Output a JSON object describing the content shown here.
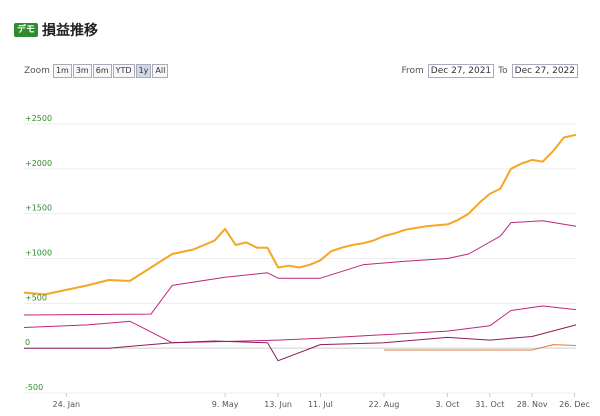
{
  "header": {
    "badge": "デモ",
    "title": "損益推移"
  },
  "toolbar": {
    "zoom_label": "Zoom",
    "zoom_buttons": [
      "1m",
      "3m",
      "6m",
      "YTD",
      "1y",
      "All"
    ],
    "active_zoom": "1y",
    "from_label": "From",
    "from_value": "Dec 27, 2021",
    "to_label": "To",
    "to_value": "Dec 27, 2022"
  },
  "colors": {
    "main": "#f5a623",
    "secondary": "#c0267a",
    "tertiary": "#8e1a5b",
    "minor": "#e07b39",
    "axis": "#2e8b2e"
  },
  "chart_data": {
    "type": "line",
    "ylim": [
      -500,
      2500
    ],
    "y_ticks": [
      "+2500",
      "+2000",
      "+1500",
      "+1000",
      "+500",
      "0",
      "-500"
    ],
    "y_tick_values": [
      2500,
      2000,
      1500,
      1000,
      500,
      0,
      -500
    ],
    "x_ticks": [
      "24. Jan",
      "9. May",
      "13. Jun",
      "11. Jul",
      "22. Aug",
      "3. Oct",
      "31. Oct",
      "28. Nov",
      "26. Dec"
    ],
    "x_tick_values": [
      "2022-01-24",
      "2022-05-09",
      "2022-06-13",
      "2022-07-11",
      "2022-08-22",
      "2022-10-03",
      "2022-10-31",
      "2022-11-28",
      "2022-12-26"
    ],
    "x_range": [
      "2021-12-27",
      "2022-12-27"
    ],
    "series": [
      {
        "color": "#f5a623",
        "points": [
          [
            "2021-12-27",
            620
          ],
          [
            "2022-01-10",
            600
          ],
          [
            "2022-01-24",
            650
          ],
          [
            "2022-02-07",
            700
          ],
          [
            "2022-02-21",
            760
          ],
          [
            "2022-03-07",
            750
          ],
          [
            "2022-03-21",
            900
          ],
          [
            "2022-04-04",
            1050
          ],
          [
            "2022-04-18",
            1100
          ],
          [
            "2022-05-02",
            1200
          ],
          [
            "2022-05-09",
            1330
          ],
          [
            "2022-05-16",
            1150
          ],
          [
            "2022-05-23",
            1180
          ],
          [
            "2022-05-30",
            1120
          ],
          [
            "2022-06-06",
            1120
          ],
          [
            "2022-06-13",
            900
          ],
          [
            "2022-06-20",
            920
          ],
          [
            "2022-06-27",
            900
          ],
          [
            "2022-07-04",
            930
          ],
          [
            "2022-07-11",
            980
          ],
          [
            "2022-07-18",
            1080
          ],
          [
            "2022-07-25",
            1120
          ],
          [
            "2022-08-01",
            1150
          ],
          [
            "2022-08-08",
            1170
          ],
          [
            "2022-08-15",
            1200
          ],
          [
            "2022-08-22",
            1250
          ],
          [
            "2022-08-29",
            1280
          ],
          [
            "2022-09-05",
            1320
          ],
          [
            "2022-09-12",
            1340
          ],
          [
            "2022-09-19",
            1360
          ],
          [
            "2022-09-26",
            1370
          ],
          [
            "2022-10-03",
            1380
          ],
          [
            "2022-10-10",
            1430
          ],
          [
            "2022-10-17",
            1500
          ],
          [
            "2022-10-24",
            1620
          ],
          [
            "2022-10-31",
            1720
          ],
          [
            "2022-11-07",
            1780
          ],
          [
            "2022-11-14",
            2000
          ],
          [
            "2022-11-21",
            2060
          ],
          [
            "2022-11-28",
            2100
          ],
          [
            "2022-12-05",
            2080
          ],
          [
            "2022-12-12",
            2200
          ],
          [
            "2022-12-19",
            2350
          ],
          [
            "2022-12-27",
            2380
          ]
        ]
      },
      {
        "color": "#c0267a",
        "points": [
          [
            "2021-12-27",
            370
          ],
          [
            "2022-03-21",
            380
          ],
          [
            "2022-04-04",
            700
          ],
          [
            "2022-05-09",
            790
          ],
          [
            "2022-06-06",
            840
          ],
          [
            "2022-06-13",
            780
          ],
          [
            "2022-07-11",
            780
          ],
          [
            "2022-08-08",
            930
          ],
          [
            "2022-09-05",
            970
          ],
          [
            "2022-10-03",
            1000
          ],
          [
            "2022-10-17",
            1050
          ],
          [
            "2022-11-07",
            1250
          ],
          [
            "2022-11-14",
            1400
          ],
          [
            "2022-12-05",
            1420
          ],
          [
            "2022-12-27",
            1360
          ]
        ]
      },
      {
        "color": "#c0267a",
        "points": [
          [
            "2021-12-27",
            230
          ],
          [
            "2022-02-07",
            260
          ],
          [
            "2022-03-07",
            300
          ],
          [
            "2022-03-14",
            240
          ],
          [
            "2022-04-04",
            60
          ],
          [
            "2022-06-13",
            90
          ],
          [
            "2022-07-11",
            110
          ],
          [
            "2022-08-22",
            150
          ],
          [
            "2022-10-03",
            190
          ],
          [
            "2022-10-31",
            250
          ],
          [
            "2022-11-14",
            420
          ],
          [
            "2022-12-05",
            470
          ],
          [
            "2022-12-27",
            430
          ]
        ]
      },
      {
        "color": "#8e1a5b",
        "points": [
          [
            "2021-12-27",
            0
          ],
          [
            "2022-02-21",
            0
          ],
          [
            "2022-04-04",
            60
          ],
          [
            "2022-05-02",
            80
          ],
          [
            "2022-06-06",
            60
          ],
          [
            "2022-06-13",
            -140
          ],
          [
            "2022-07-11",
            40
          ],
          [
            "2022-08-22",
            60
          ],
          [
            "2022-10-03",
            120
          ],
          [
            "2022-10-31",
            90
          ],
          [
            "2022-11-28",
            130
          ],
          [
            "2022-12-27",
            260
          ]
        ]
      },
      {
        "color": "#e07b39",
        "points": [
          [
            "2022-08-22",
            -20
          ],
          [
            "2022-11-28",
            -20
          ],
          [
            "2022-12-12",
            40
          ],
          [
            "2022-12-27",
            30
          ]
        ]
      }
    ]
  }
}
